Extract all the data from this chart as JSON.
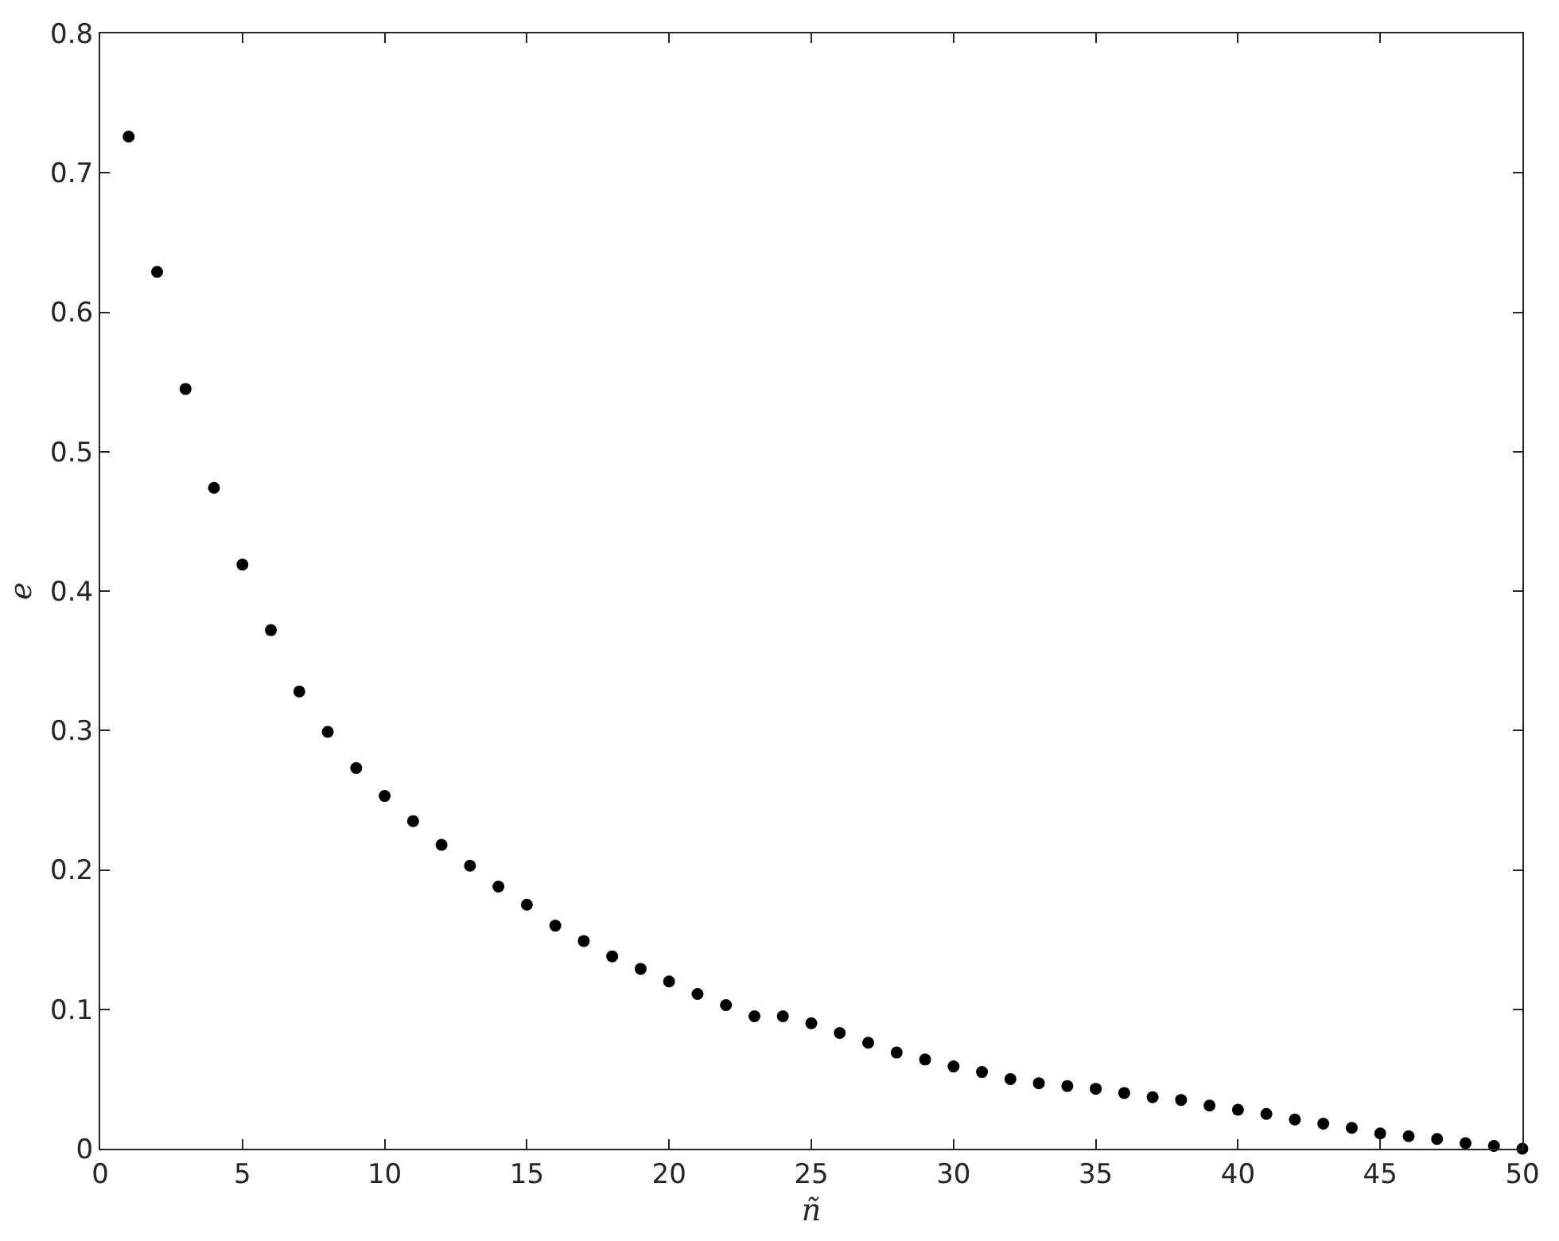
{
  "chart_data": {
    "type": "scatter",
    "xlabel": "ñ",
    "ylabel": "e",
    "x": [
      1,
      2,
      3,
      4,
      5,
      6,
      7,
      8,
      9,
      10,
      11,
      12,
      13,
      14,
      15,
      16,
      17,
      18,
      19,
      20,
      21,
      22,
      23,
      24,
      25,
      26,
      27,
      28,
      29,
      30,
      31,
      32,
      33,
      34,
      35,
      36,
      37,
      38,
      39,
      40,
      41,
      42,
      43,
      44,
      45,
      46,
      47,
      48,
      49,
      50
    ],
    "series": [
      {
        "color": "#000000",
        "values": [
          0.726,
          0.629,
          0.545,
          0.474,
          0.419,
          0.372,
          0.328,
          0.299,
          0.273,
          0.253,
          0.235,
          0.218,
          0.203,
          0.188,
          0.175,
          0.16,
          0.149,
          0.138,
          0.129,
          0.12,
          0.111,
          0.103,
          0.095,
          0.095,
          0.09,
          0.083,
          0.076,
          0.069,
          0.064,
          0.059,
          0.055,
          0.05,
          0.047,
          0.045,
          0.043,
          0.04,
          0.037,
          0.035,
          0.031,
          0.028,
          0.025,
          0.021,
          0.018,
          0.015,
          0.011,
          0.009,
          0.007,
          0.004,
          0.002,
          0
        ]
      }
    ],
    "xlim": [
      0,
      50
    ],
    "xticks": [
      0,
      5,
      10,
      15,
      20,
      25,
      30,
      35,
      40,
      45,
      50
    ],
    "ylim": [
      0,
      0.8
    ],
    "yticks": [
      0,
      0.1,
      0.2,
      0.3,
      0.4,
      0.5,
      0.6,
      0.7,
      0.8
    ],
    "marker": "circle"
  }
}
